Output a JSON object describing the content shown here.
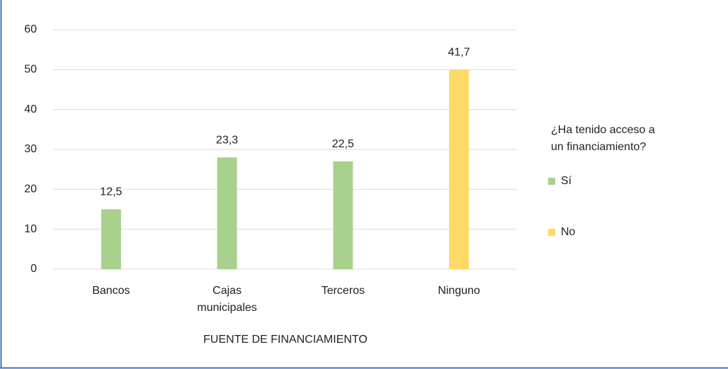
{
  "chart_data": {
    "type": "bar",
    "x_label": "FUENTE DE FINANCIAMIENTO",
    "legend_title": "¿Ha tenido acceso a un financiamiento?",
    "categories": [
      "Bancos",
      "Cajas municipales",
      "Terceros",
      "Ninguno"
    ],
    "series": [
      {
        "name": "Sí",
        "color": "#a9d18e",
        "values": [
          15,
          28,
          27,
          null
        ],
        "value_labels": [
          "12,5",
          "23,3",
          "22,5",
          null
        ]
      },
      {
        "name": "No",
        "color": "#ffd966",
        "values": [
          null,
          null,
          null,
          50
        ],
        "value_labels": [
          null,
          null,
          null,
          "41,7"
        ]
      }
    ],
    "ylim": [
      0,
      60
    ],
    "yticks": [
      0,
      10,
      20,
      30,
      40,
      50,
      60
    ],
    "grid": true,
    "legend": "right"
  }
}
